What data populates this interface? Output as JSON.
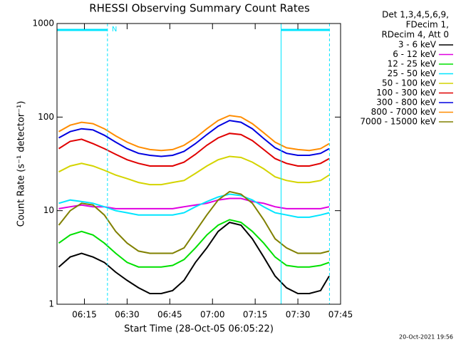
{
  "chart_data": {
    "type": "line",
    "title": "RHESSI Observing Summary Count Rates",
    "x_label": "Start Time (28-Oct-05 06:05:22)",
    "y_label": "Count Rate (s⁻¹ detector⁻¹)",
    "legend_header": [
      "Det 1,3,4,5,6,9,",
      "FDecim 1,",
      "RDecim 4, Att 0"
    ],
    "footer": "20-Oct-2021 19:56",
    "log_y": true,
    "xlim": [
      5.367,
      105
    ],
    "xticks": [
      {
        "value": 15,
        "label": "06:15"
      },
      {
        "value": 30,
        "label": "06:30"
      },
      {
        "value": 45,
        "label": "06:45"
      },
      {
        "value": 60,
        "label": "07:00"
      },
      {
        "value": 75,
        "label": "07:15"
      },
      {
        "value": 90,
        "label": "07:30"
      },
      {
        "value": 105,
        "label": "07:45"
      }
    ],
    "ylim": [
      1,
      1000
    ],
    "yticks": [
      1,
      10,
      100,
      1000
    ],
    "intervals": [
      {
        "label": "N",
        "start": 5.367,
        "end": 23.1,
        "color": "#00e5ff"
      },
      {
        "start": 84.1,
        "end": 101.1,
        "color": "#00e5ff"
      }
    ],
    "x": [
      6,
      10,
      14,
      18,
      22,
      26,
      30,
      34,
      38,
      42,
      46,
      50,
      54,
      58,
      62,
      66,
      70,
      74,
      78,
      82,
      86,
      90,
      94,
      98,
      101
    ],
    "series": [
      {
        "name": "3 - 6 keV",
        "color": "#000000",
        "values": [
          2.5,
          3.2,
          3.5,
          3.2,
          2.8,
          2.2,
          1.8,
          1.5,
          1.3,
          1.3,
          1.4,
          1.8,
          2.8,
          4,
          6,
          7.5,
          7,
          5,
          3.2,
          2,
          1.5,
          1.3,
          1.3,
          1.4,
          2
        ]
      },
      {
        "name": "6 - 12 keV",
        "color": "#e000e0",
        "values": [
          10.5,
          11,
          11.5,
          11,
          11,
          10.5,
          10.5,
          10.5,
          10.5,
          10.5,
          10.5,
          11,
          11.5,
          12,
          13,
          13.5,
          13.5,
          12.5,
          12,
          11,
          10.5,
          10.5,
          10.5,
          10.5,
          11
        ]
      },
      {
        "name": "12 - 25 keV",
        "color": "#00e000",
        "values": [
          4.5,
          5.5,
          6,
          5.5,
          4.5,
          3.5,
          2.8,
          2.5,
          2.5,
          2.5,
          2.6,
          3,
          4,
          5.5,
          7,
          8,
          7.5,
          6,
          4.5,
          3.2,
          2.6,
          2.5,
          2.5,
          2.6,
          2.8
        ]
      },
      {
        "name": "25 - 50 keV",
        "color": "#00e5ff",
        "values": [
          12,
          13,
          12.5,
          12,
          11,
          10,
          9.5,
          9,
          9,
          9,
          9,
          9.5,
          11,
          12.5,
          14,
          15,
          14.5,
          13,
          11,
          9.5,
          9,
          8.5,
          8.5,
          9,
          9.5
        ]
      },
      {
        "name": "50 - 100 keV",
        "color": "#d4d400",
        "values": [
          26,
          30,
          32,
          30,
          27,
          24,
          22,
          20,
          19,
          19,
          20,
          21,
          25,
          30,
          35,
          38,
          37,
          33,
          28,
          23,
          21,
          20,
          20,
          21,
          24
        ]
      },
      {
        "name": "100 - 300 keV",
        "color": "#e00000",
        "values": [
          46,
          55,
          58,
          52,
          46,
          40,
          35,
          32,
          30,
          30,
          30,
          33,
          40,
          50,
          60,
          67,
          65,
          56,
          45,
          36,
          32,
          30,
          30,
          32,
          36
        ]
      },
      {
        "name": "300 - 800 keV",
        "color": "#0000e0",
        "values": [
          60,
          70,
          75,
          73,
          64,
          54,
          46,
          41,
          39,
          38,
          39,
          43,
          52,
          65,
          80,
          92,
          88,
          75,
          59,
          47,
          41,
          39,
          39,
          41,
          46
        ]
      },
      {
        "name": "800 - 7000 keV",
        "color": "#ff8c00",
        "values": [
          70,
          82,
          88,
          85,
          75,
          63,
          54,
          48,
          45,
          44,
          45,
          50,
          60,
          75,
          92,
          104,
          100,
          85,
          68,
          54,
          47,
          45,
          44,
          46,
          52
        ]
      },
      {
        "name": "7000 - 15000 keV",
        "color": "#808000",
        "values": [
          7,
          10,
          12,
          11.5,
          9,
          6,
          4.5,
          3.7,
          3.5,
          3.5,
          3.5,
          4,
          6,
          9,
          13,
          16,
          15,
          12,
          8,
          5,
          4,
          3.5,
          3.5,
          3.5,
          3.7
        ]
      }
    ]
  }
}
